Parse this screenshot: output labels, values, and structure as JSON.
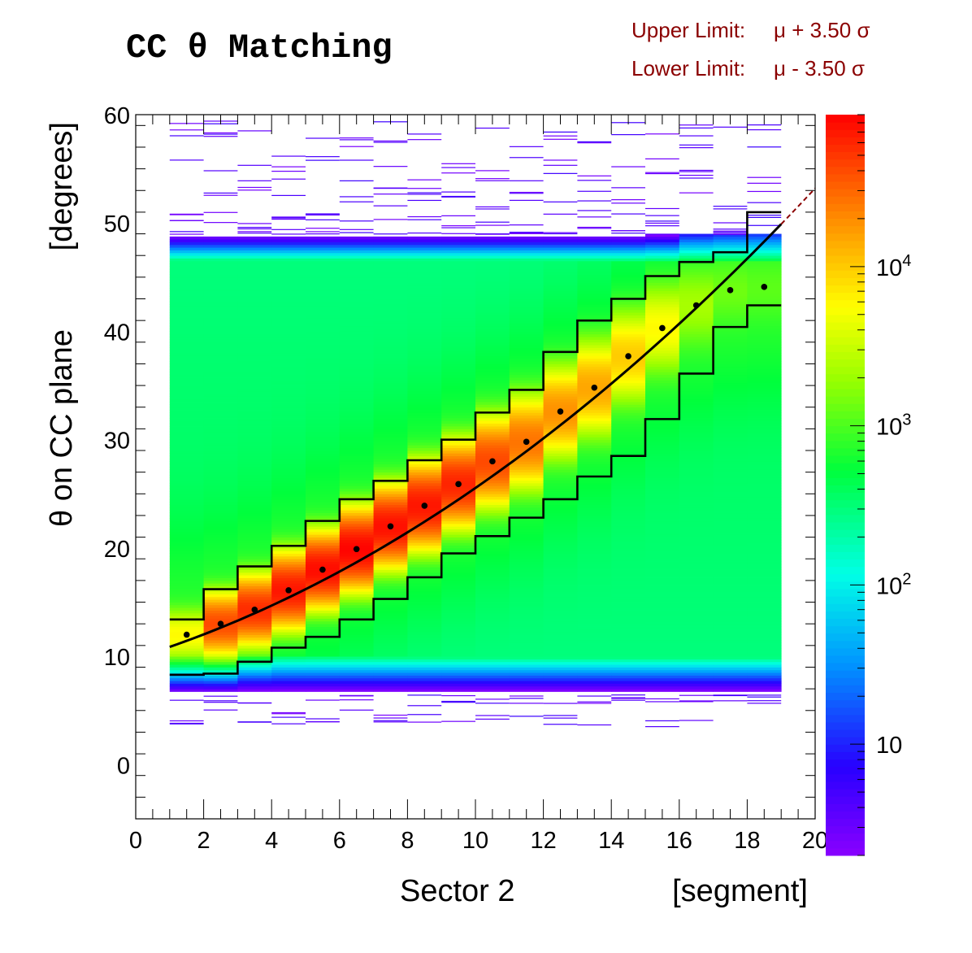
{
  "chart_data": {
    "type": "heatmap",
    "title": "CC θ Matching",
    "annotations": {
      "upper": {
        "label": "Upper Limit:",
        "formula": "μ + 3.50 σ"
      },
      "lower": {
        "label": "Lower Limit:",
        "formula": "μ - 3.50 σ"
      },
      "color": "#8b0000"
    },
    "xlabel": {
      "left": "Sector 2",
      "right": "[segment]"
    },
    "ylabel": {
      "left": "θ on CC plane",
      "right": "[degrees]"
    },
    "xlim": [
      0,
      20
    ],
    "ylim": [
      -5,
      60
    ],
    "x_ticks": [
      "0",
      "2",
      "4",
      "6",
      "8",
      "10",
      "12",
      "14",
      "16",
      "18",
      "20"
    ],
    "x_tick_values": [
      0,
      2,
      4,
      6,
      8,
      10,
      12,
      14,
      16,
      18,
      20
    ],
    "y_ticks": [
      "0",
      "10",
      "20",
      "30",
      "40",
      "50",
      "60"
    ],
    "y_tick_values": [
      0,
      10,
      20,
      30,
      40,
      50,
      60
    ],
    "z_scale": "log",
    "z_range": [
      2,
      90000
    ],
    "z_ticks": [
      {
        "value": 10,
        "base": "10",
        "exp": ""
      },
      {
        "value": 100,
        "base": "10",
        "exp": "2"
      },
      {
        "value": 1000,
        "base": "10",
        "exp": "3"
      },
      {
        "value": 10000,
        "base": "10",
        "exp": "4"
      }
    ],
    "segments": [
      1,
      2,
      3,
      4,
      5,
      6,
      7,
      8,
      9,
      10,
      11,
      12,
      13,
      14,
      15,
      16,
      17,
      18
    ],
    "band": {
      "core_low": 10,
      "core_high": 46.5,
      "edge_low": 6.5,
      "edge_high": 49,
      "core_level": 350
    },
    "peak_mean": [
      12.0,
      13.0,
      14.3,
      16.1,
      18.0,
      19.9,
      22.0,
      23.9,
      25.9,
      28.0,
      29.8,
      32.6,
      34.8,
      37.7,
      40.3,
      42.4,
      43.8,
      44.1
    ],
    "peak_sigma": [
      1.2,
      1.3,
      1.4,
      1.5,
      1.5,
      1.6,
      1.6,
      1.7,
      1.7,
      1.8,
      1.9,
      1.9,
      2.0,
      2.0,
      2.0,
      2.0,
      1.8,
      1.8
    ],
    "peak_level": [
      5000,
      40000,
      55000,
      70000,
      78000,
      85000,
      75000,
      70000,
      60000,
      40000,
      25000,
      18000,
      14000,
      9000,
      5000,
      1500,
      600,
      400
    ],
    "upper_limit": [
      13.4,
      16.2,
      18.3,
      20.2,
      22.5,
      24.5,
      26.2,
      28.1,
      30.0,
      32.5,
      34.6,
      38.1,
      41.0,
      43.0,
      45.1,
      46.4,
      47.3,
      51.0
    ],
    "lower_limit": [
      8.3,
      8.4,
      9.5,
      10.8,
      11.8,
      13.4,
      15.3,
      17.3,
      19.5,
      21.1,
      22.8,
      24.5,
      26.6,
      28.5,
      31.9,
      36.1,
      40.4,
      42.4
    ],
    "fit_curve": {
      "coeffs": [
        9.84,
        0.972,
        0.0598
      ],
      "x_range": [
        1,
        19
      ],
      "dashed_range": [
        19,
        20
      ]
    },
    "points": {
      "x": [
        1.5,
        2.5,
        3.5,
        4.5,
        5.5,
        6.5,
        7.5,
        8.5,
        9.5,
        10.5,
        11.5,
        12.5,
        13.5,
        14.5,
        15.5,
        16.5,
        17.5,
        18.5
      ],
      "y": [
        12.0,
        13.0,
        14.3,
        16.1,
        18.0,
        19.9,
        22.0,
        23.9,
        25.9,
        28.0,
        29.8,
        32.6,
        34.8,
        37.7,
        40.3,
        42.4,
        43.8,
        44.1
      ]
    }
  }
}
